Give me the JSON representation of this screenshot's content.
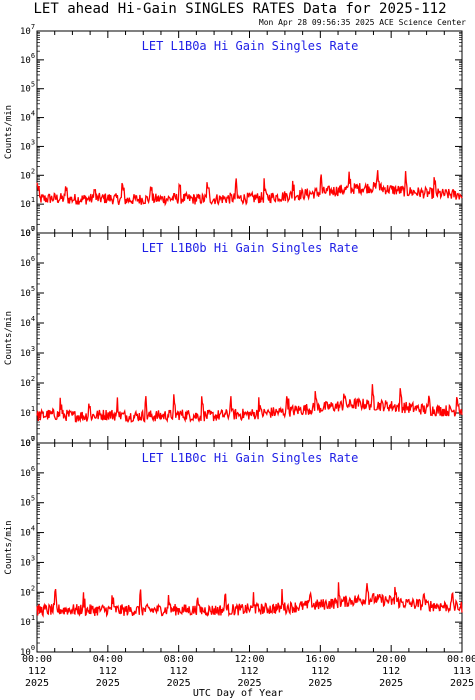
{
  "header": {
    "title": "LET ahead Hi-Gain SINGLES RATES Data for 2025-112",
    "timestamp": "Mon Apr 28 09:56:35 2025 ACE Science Center"
  },
  "colors": {
    "series": "#ff0000",
    "panel_title": "#1e1ee6",
    "axes": "#000000"
  },
  "xaxis": {
    "label": "UTC Day of Year",
    "ticks": [
      {
        "hours": 0,
        "time": "00:00",
        "day": "112",
        "year": "2025"
      },
      {
        "hours": 4,
        "time": "04:00",
        "day": "112",
        "year": "2025"
      },
      {
        "hours": 8,
        "time": "08:00",
        "day": "112",
        "year": "2025"
      },
      {
        "hours": 12,
        "time": "12:00",
        "day": "112",
        "year": "2025"
      },
      {
        "hours": 16,
        "time": "16:00",
        "day": "112",
        "year": "2025"
      },
      {
        "hours": 20,
        "time": "20:00",
        "day": "112",
        "year": "2025"
      },
      {
        "hours": 24,
        "time": "00:00",
        "day": "113",
        "year": "2025"
      }
    ]
  },
  "chart_data": [
    {
      "type": "line",
      "title": "LET L1B0a Hi Gain Singles Rate",
      "xlabel": "UTC Day of Year",
      "ylabel": "Counts/min",
      "yscale": "log",
      "ylim": [
        1,
        10000000
      ],
      "xlim": [
        0,
        24
      ],
      "ytick_labels": [
        "10^0",
        "10^1",
        "10^2",
        "10^3",
        "10^4",
        "10^5",
        "10^6",
        "10^7"
      ],
      "series": [
        {
          "x": [
            0,
            1,
            2,
            3,
            4,
            5,
            6,
            7,
            8,
            9,
            10,
            11,
            12,
            13,
            14,
            15,
            16,
            17,
            18,
            19,
            20,
            21,
            22,
            23,
            24
          ],
          "y": [
            15,
            16,
            15,
            15,
            16,
            14,
            15,
            15,
            16,
            15,
            15,
            16,
            16,
            17,
            19,
            22,
            25,
            30,
            35,
            38,
            32,
            27,
            24,
            22,
            21
          ]
        }
      ]
    },
    {
      "type": "line",
      "title": "LET L1B0b Hi Gain Singles Rate",
      "xlabel": "UTC Day of Year",
      "ylabel": "Counts/min",
      "yscale": "log",
      "ylim": [
        1,
        10000000
      ],
      "xlim": [
        0,
        24
      ],
      "ytick_labels": [
        "10^0",
        "10^1",
        "10^2",
        "10^3",
        "10^4",
        "10^5",
        "10^6",
        "10^7"
      ],
      "series": [
        {
          "x": [
            0,
            1,
            2,
            3,
            4,
            5,
            6,
            7,
            8,
            9,
            10,
            11,
            12,
            13,
            14,
            15,
            16,
            17,
            18,
            19,
            20,
            21,
            22,
            23,
            24
          ],
          "y": [
            8,
            9,
            8,
            8,
            9,
            8,
            8,
            8,
            9,
            8,
            8,
            9,
            9,
            10,
            11,
            13,
            15,
            17,
            20,
            19,
            17,
            15,
            13,
            12,
            12
          ]
        }
      ]
    },
    {
      "type": "line",
      "title": "LET L1B0c Hi Gain Singles Rate",
      "xlabel": "UTC Day of Year",
      "ylabel": "Counts/min",
      "yscale": "log",
      "ylim": [
        1,
        10000000
      ],
      "xlim": [
        0,
        24
      ],
      "ytick_labels": [
        "10^0",
        "10^1",
        "10^2",
        "10^3",
        "10^4",
        "10^5",
        "10^6",
        "10^7"
      ],
      "series": [
        {
          "x": [
            0,
            1,
            2,
            3,
            4,
            5,
            6,
            7,
            8,
            9,
            10,
            11,
            12,
            13,
            14,
            15,
            16,
            17,
            18,
            19,
            20,
            21,
            22,
            23,
            24
          ],
          "y": [
            25,
            26,
            26,
            25,
            26,
            25,
            25,
            26,
            26,
            25,
            25,
            26,
            27,
            28,
            30,
            34,
            38,
            45,
            55,
            60,
            50,
            42,
            37,
            34,
            32
          ]
        }
      ]
    }
  ]
}
